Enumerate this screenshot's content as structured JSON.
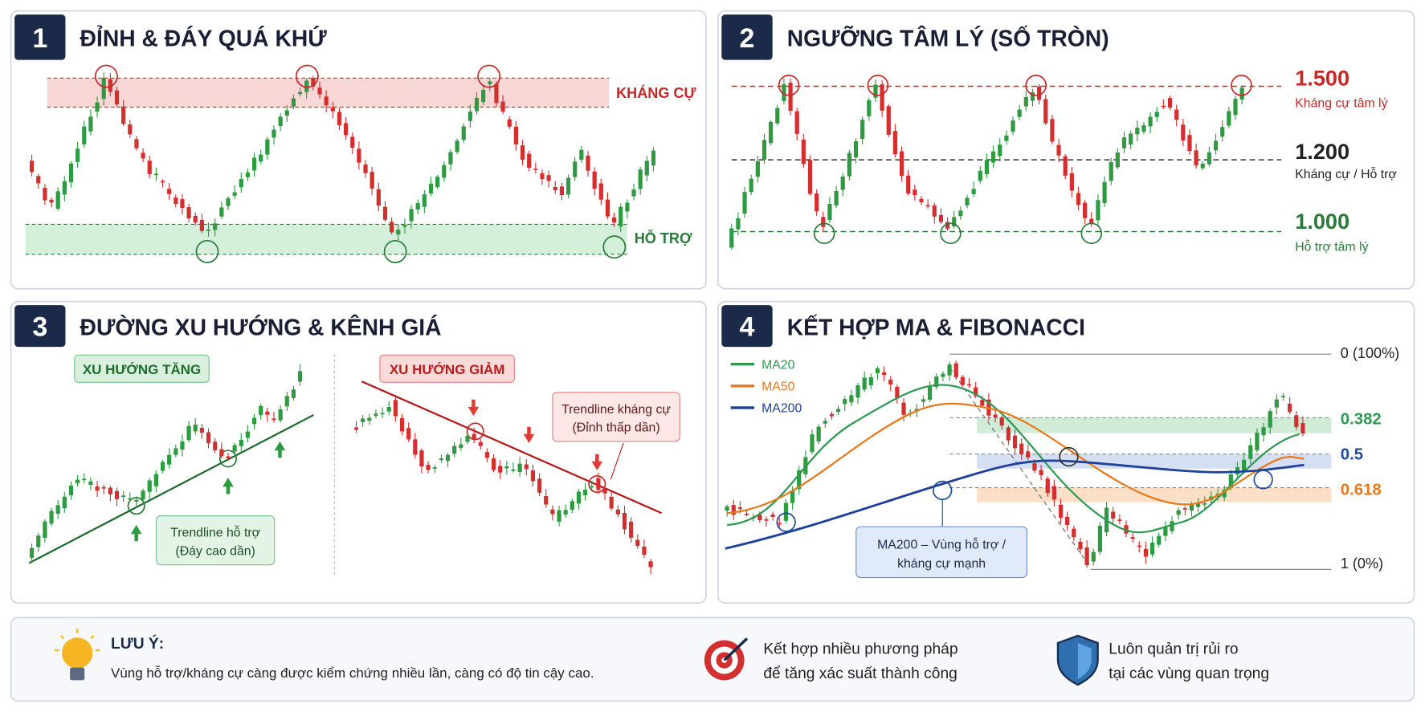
{
  "panels": [
    {
      "number": "1",
      "title": "ĐỈNH & ĐÁY QUÁ KHỨ",
      "resistance": "KHÁNG CỰ",
      "support": "HỖ TRỢ"
    },
    {
      "number": "2",
      "title": "NGƯỠNG TÂM LÝ (SỐ TRÒN)",
      "levels": [
        {
          "value": "1.500",
          "label": "Kháng cự tâm lý"
        },
        {
          "value": "1.200",
          "label": "Kháng cự / Hỗ trợ"
        },
        {
          "value": "1.000",
          "label": "Hỗ trợ tâm lý"
        }
      ]
    },
    {
      "number": "3",
      "title": "ĐƯỜNG XU HƯỚNG & KÊNH GIÁ",
      "uptrend": "XU HƯỚNG TĂNG",
      "support_note": [
        "Trendline hỗ trợ",
        "(Đáy cao dần)"
      ],
      "downtrend": "XU HƯỚNG GIẢM",
      "resistance_note": [
        "Trendline kháng cự",
        "(Đỉnh thấp dần)"
      ]
    },
    {
      "number": "4",
      "title": "KẾT HỢP MA & FIBONACCI",
      "legend": [
        "MA20",
        "MA50",
        "MA200"
      ],
      "fib": [
        "0 (100%)",
        "0.382",
        "0.5",
        "0.618",
        "1 (0%)"
      ],
      "callout": [
        "MA200 – Vùng hỗ trợ /",
        "kháng cự mạnh"
      ]
    }
  ],
  "note": {
    "title": "LƯU Ý:",
    "text": "Vùng hỗ trợ/kháng cự càng được kiểm chứng nhiều lần, càng có độ tin cậy cao.",
    "tips": [
      [
        "Kết hợp nhiều phương pháp",
        "để tăng xác suất thành công"
      ],
      [
        "Luôn quản trị rủi ro",
        "tại các vùng quan trọng"
      ]
    ]
  }
}
